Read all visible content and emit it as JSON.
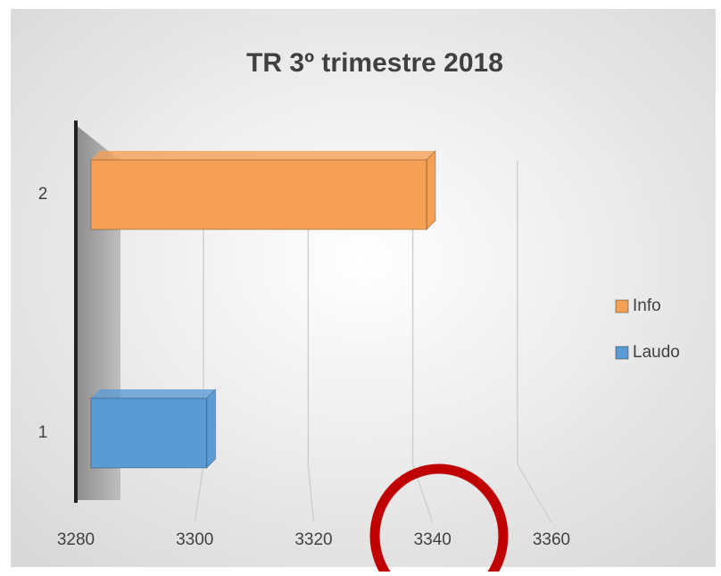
{
  "chart_data": {
    "type": "bar",
    "orientation": "horizontal",
    "title": "TR 3º trimestre 2018",
    "categories": [
      "1",
      "2"
    ],
    "series": [
      {
        "name": "Info",
        "color": "#f5a054",
        "values": [
          null,
          3339
        ]
      },
      {
        "name": "Laudo",
        "color": "#5b9bd5",
        "values": [
          3302,
          null
        ]
      }
    ],
    "xlim": [
      3280,
      3360
    ],
    "xticks": [
      3280,
      3300,
      3320,
      3340,
      3360
    ],
    "grid": true,
    "legend": "right"
  }
}
